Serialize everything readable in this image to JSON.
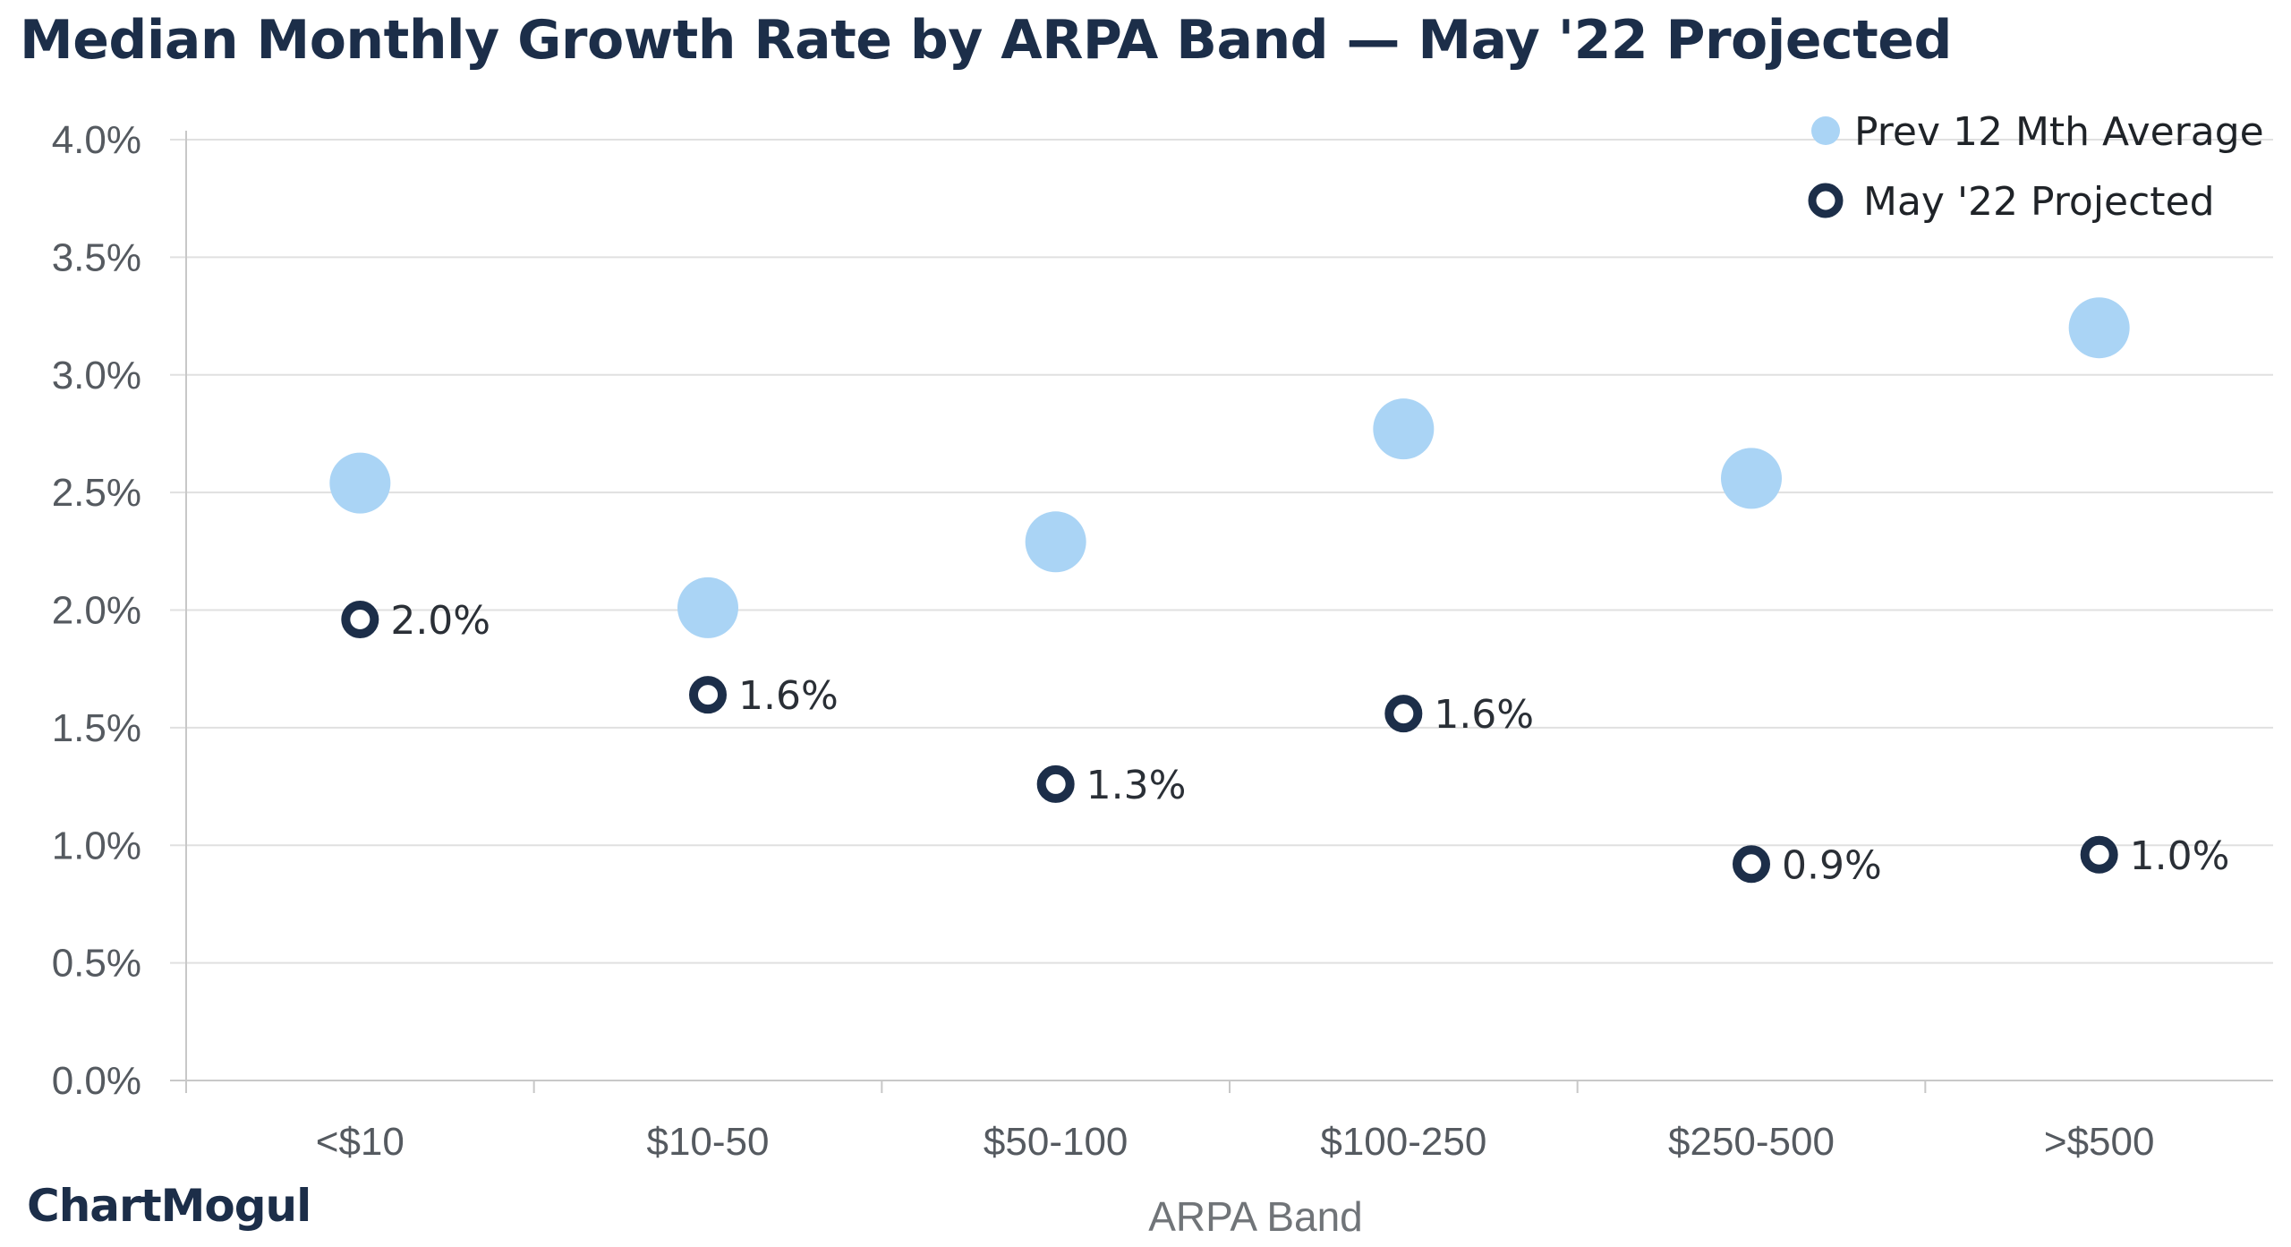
{
  "chart_data": {
    "type": "scatter",
    "title": "Median Monthly Growth Rate by ARPA Band — May '22 Projected",
    "xlabel": "ARPA Band",
    "ylabel": "",
    "categories": [
      "<$10",
      "$10-50",
      "$50-100",
      "$100-250",
      "$250-500",
      ">$500"
    ],
    "ylim": [
      0,
      4.0
    ],
    "yticks": [
      "0.0%",
      "0.5%",
      "1.0%",
      "1.5%",
      "2.0%",
      "2.5%",
      "3.0%",
      "3.5%",
      "4.0%"
    ],
    "grid": true,
    "legend_position": "top-right",
    "series": [
      {
        "name": "Prev 12 Mth Average",
        "marker": "filled-circle",
        "color": "#aad4f5",
        "values": [
          2.54,
          2.01,
          2.29,
          2.77,
          2.56,
          3.2
        ],
        "labels": []
      },
      {
        "name": "May '22 Projected",
        "marker": "ring",
        "color": "#1c2e49",
        "values": [
          1.96,
          1.64,
          1.26,
          1.56,
          0.92,
          0.96
        ],
        "labels": [
          "2.0%",
          "1.6%",
          "1.3%",
          "1.6%",
          "0.9%",
          "1.0%"
        ]
      }
    ]
  },
  "brand": {
    "logo_text": "ChartMogul",
    "color": "#1c2e49"
  }
}
